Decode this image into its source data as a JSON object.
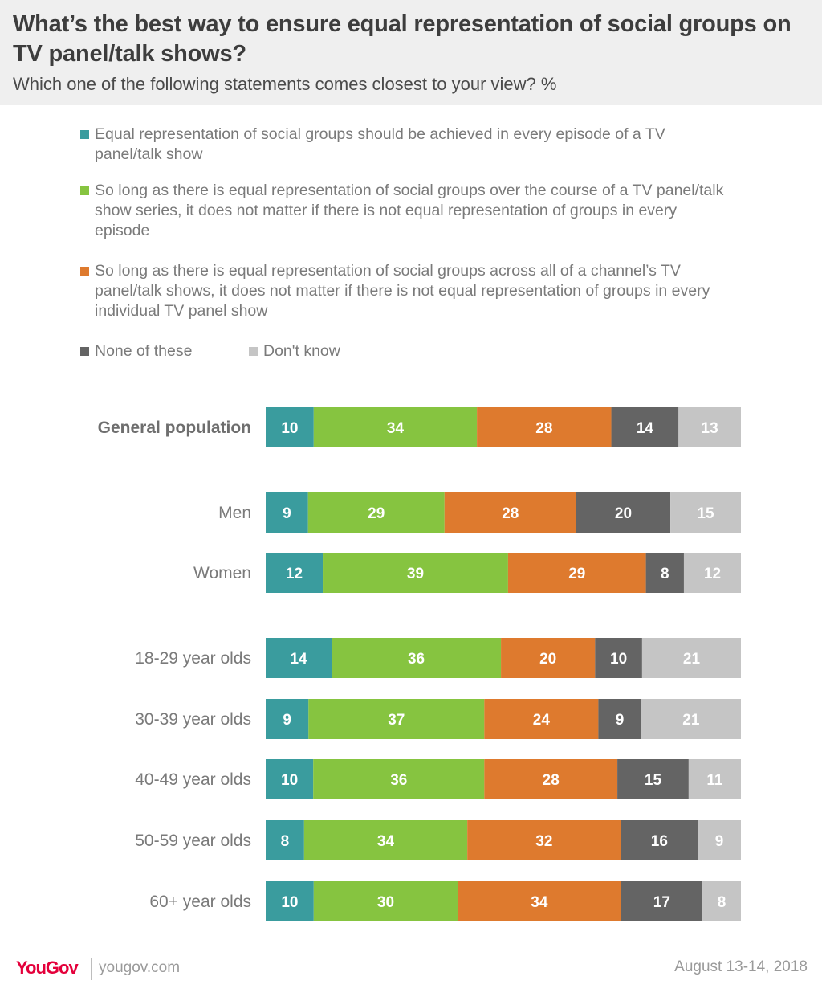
{
  "header": {
    "title": "What’s the best way to ensure equal representation of social groups on TV panel/talk shows?",
    "subtitle": "Which one of the following statements comes closest to your view? %"
  },
  "legend": {
    "s1": "Equal representation of social groups should be achieved in every episode of a TV panel/talk show",
    "s2": "So long as there is equal representation of social groups over the course of a TV panel/talk show series, it does not matter if there is not equal representation of groups in every episode",
    "s3": "So long as there is equal representation of social groups across all of a channel’s TV panel/talk shows, it does not matter if there is not equal representation of groups in every individual TV panel show",
    "s4": "None of these",
    "s5": "Don't know"
  },
  "footer": {
    "brand_you": "You",
    "brand_gov": "Gov",
    "site": "yougov.com",
    "date": "August 13-14, 2018"
  },
  "chart_data": {
    "type": "bar",
    "orientation": "horizontal",
    "stacked": true,
    "categories": [
      "General population",
      "Men",
      "Women",
      "18-29 year olds",
      "30-39 year olds",
      "40-49 year olds",
      "50-59 year olds",
      "60+ year olds"
    ],
    "series": [
      {
        "name": "Equal representation of social groups should be achieved in every episode of a TV panel/talk show",
        "color": "#3a9c9e",
        "values": [
          10,
          9,
          12,
          14,
          9,
          10,
          8,
          10
        ]
      },
      {
        "name": "So long as there is equal representation of social groups over the course of a TV panel/talk show series, it does not matter if there is not equal representation of groups in every episode",
        "color": "#86c440",
        "values": [
          34,
          29,
          39,
          36,
          37,
          36,
          34,
          30
        ]
      },
      {
        "name": "So long as there is equal representation of social groups across all of a channel’s TV panel/talk shows, it does not matter if there is not equal representation of groups in every individual TV panel show",
        "color": "#de7a2e",
        "values": [
          28,
          28,
          29,
          20,
          24,
          28,
          32,
          34
        ]
      },
      {
        "name": "None of these",
        "color": "#646464",
        "values": [
          14,
          20,
          8,
          10,
          9,
          15,
          16,
          17
        ]
      },
      {
        "name": "Don't know",
        "color": "#c5c5c5",
        "values": [
          13,
          15,
          12,
          21,
          21,
          11,
          9,
          8
        ]
      }
    ],
    "bold_categories": [
      "General population"
    ],
    "grid": false
  }
}
